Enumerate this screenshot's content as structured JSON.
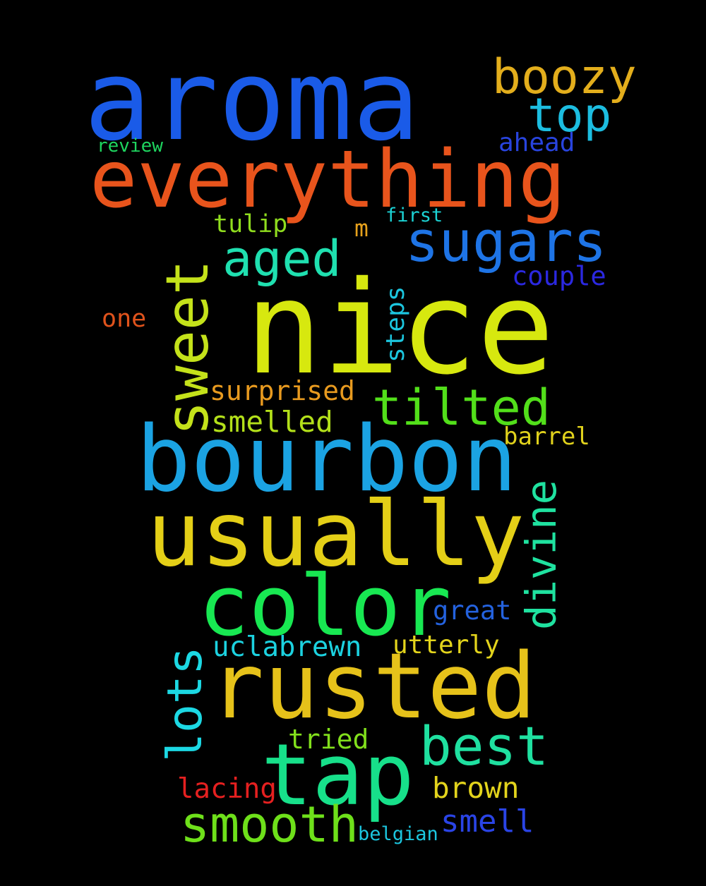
{
  "words": [
    {
      "text": "aroma",
      "color": "#1a5be8"
    },
    {
      "text": "boozy",
      "color": "#e3ae1c"
    },
    {
      "text": "top",
      "color": "#1cbde0"
    },
    {
      "text": "review",
      "color": "#1ed55f"
    },
    {
      "text": "ahead",
      "color": "#2844de"
    },
    {
      "text": "everything",
      "color": "#e8541c"
    },
    {
      "text": "tulip",
      "color": "#8fdc1e"
    },
    {
      "text": "first",
      "color": "#1cd2d4"
    },
    {
      "text": "m",
      "color": "#e6a11c"
    },
    {
      "text": "sugars",
      "color": "#1e74e6"
    },
    {
      "text": "sweet",
      "color": "#c4e21a"
    },
    {
      "text": "aged",
      "color": "#1fe0b0"
    },
    {
      "text": "couple",
      "color": "#2b28e0"
    },
    {
      "text": "nice",
      "color": "#d7e80f"
    },
    {
      "text": "steps",
      "color": "#1cc6df"
    },
    {
      "text": "one",
      "color": "#e0531c"
    },
    {
      "text": "surprised",
      "color": "#e89a1f"
    },
    {
      "text": "tilted",
      "color": "#52df1a"
    },
    {
      "text": "smelled",
      "color": "#b3e01a"
    },
    {
      "text": "barrel",
      "color": "#e0d11c"
    },
    {
      "text": "bourbon",
      "color": "#1ba3e3"
    },
    {
      "text": "divine",
      "color": "#1fe2a0"
    },
    {
      "text": "usually",
      "color": "#e4cf17"
    },
    {
      "text": "color",
      "color": "#18e852"
    },
    {
      "text": "great",
      "color": "#2462de"
    },
    {
      "text": "uclabrewn",
      "color": "#1cd2e0"
    },
    {
      "text": "utterly",
      "color": "#e3d41c"
    },
    {
      "text": "lots",
      "color": "#1cd8e3"
    },
    {
      "text": "rusted",
      "color": "#e6c21a"
    },
    {
      "text": "tried",
      "color": "#82e01c"
    },
    {
      "text": "best",
      "color": "#1fe0a0"
    },
    {
      "text": "tap",
      "color": "#17e08a"
    },
    {
      "text": "brown",
      "color": "#e3d41c"
    },
    {
      "text": "lacing",
      "color": "#e52020"
    },
    {
      "text": "smooth",
      "color": "#6ee01a"
    },
    {
      "text": "smell",
      "color": "#2a44e6"
    },
    {
      "text": "belgian",
      "color": "#1cc6df"
    }
  ]
}
